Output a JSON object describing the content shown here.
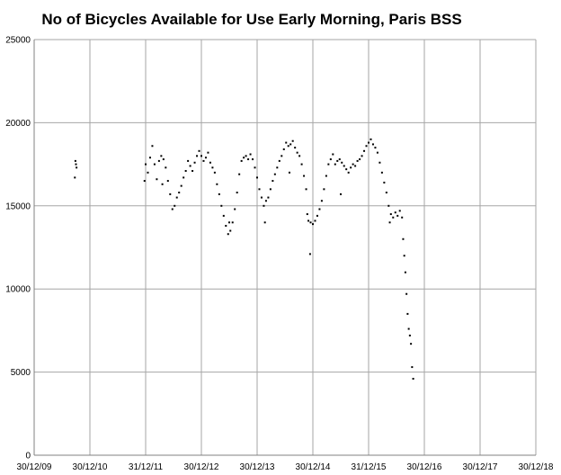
{
  "chart_data": {
    "type": "scatter",
    "title": "No of Bicycles Available for Use Early Morning, Paris BSS",
    "xlabel": "",
    "ylabel": "",
    "x_tick_labels": [
      "30/12/09",
      "30/12/10",
      "31/12/11",
      "30/12/12",
      "30/12/13",
      "30/12/14",
      "31/12/15",
      "30/12/16",
      "30/12/17",
      "30/12/18"
    ],
    "y_tick_labels": [
      "0",
      "5000",
      "10000",
      "15000",
      "20000",
      "25000"
    ],
    "ylim": [
      0,
      25000
    ],
    "xlim_years": [
      2010.0,
      2019.0
    ],
    "grid": true,
    "legend": "none",
    "colors": {
      "points": "#000000",
      "grid": "#a6a6a6",
      "axis": "#808080"
    },
    "series": [
      {
        "points": [
          [
            2010.73,
            16700
          ],
          [
            2010.74,
            17700
          ],
          [
            2010.75,
            17500
          ],
          [
            2010.76,
            17300
          ],
          [
            2012.0,
            17500
          ],
          [
            2012.04,
            17000
          ],
          [
            2012.08,
            17900
          ],
          [
            2012.12,
            18600
          ],
          [
            2012.16,
            17500
          ],
          [
            2012.2,
            16600
          ],
          [
            2012.24,
            17700
          ],
          [
            2012.28,
            18000
          ],
          [
            2012.32,
            17800
          ],
          [
            2012.36,
            17300
          ],
          [
            2012.4,
            16500
          ],
          [
            2012.44,
            15700
          ],
          [
            2012.48,
            14800
          ],
          [
            2012.52,
            15000
          ],
          [
            2012.56,
            15500
          ],
          [
            2012.6,
            15800
          ],
          [
            2012.64,
            16200
          ],
          [
            2012.68,
            16700
          ],
          [
            2012.72,
            17100
          ],
          [
            2012.76,
            17700
          ],
          [
            2012.8,
            17400
          ],
          [
            2012.84,
            17100
          ],
          [
            2012.88,
            17600
          ],
          [
            2012.92,
            18000
          ],
          [
            2012.96,
            18300
          ],
          [
            2013.0,
            18000
          ],
          [
            2013.04,
            17700
          ],
          [
            2013.08,
            17900
          ],
          [
            2013.12,
            18200
          ],
          [
            2013.16,
            17600
          ],
          [
            2013.2,
            17300
          ],
          [
            2013.24,
            17000
          ],
          [
            2013.28,
            16300
          ],
          [
            2013.32,
            15700
          ],
          [
            2013.36,
            15000
          ],
          [
            2013.4,
            14400
          ],
          [
            2013.44,
            13800
          ],
          [
            2013.48,
            13300
          ],
          [
            2013.52,
            13500
          ],
          [
            2013.56,
            14000
          ],
          [
            2013.6,
            14800
          ],
          [
            2013.64,
            15800
          ],
          [
            2013.68,
            16900
          ],
          [
            2013.72,
            17700
          ],
          [
            2013.76,
            17900
          ],
          [
            2013.8,
            18000
          ],
          [
            2013.84,
            17800
          ],
          [
            2013.88,
            18100
          ],
          [
            2013.92,
            17800
          ],
          [
            2013.96,
            17300
          ],
          [
            2014.0,
            16700
          ],
          [
            2014.04,
            16000
          ],
          [
            2014.08,
            15500
          ],
          [
            2014.12,
            15000
          ],
          [
            2014.16,
            15300
          ],
          [
            2014.2,
            15500
          ],
          [
            2014.24,
            16000
          ],
          [
            2014.28,
            16500
          ],
          [
            2014.32,
            16900
          ],
          [
            2014.36,
            17300
          ],
          [
            2014.4,
            17700
          ],
          [
            2014.44,
            18000
          ],
          [
            2014.48,
            18400
          ],
          [
            2014.52,
            18800
          ],
          [
            2014.56,
            18600
          ],
          [
            2014.6,
            18700
          ],
          [
            2014.64,
            18900
          ],
          [
            2014.68,
            18500
          ],
          [
            2014.72,
            18200
          ],
          [
            2014.76,
            18000
          ],
          [
            2014.8,
            17500
          ],
          [
            2014.84,
            16800
          ],
          [
            2014.88,
            16000
          ],
          [
            2014.9,
            14500
          ],
          [
            2014.92,
            14100
          ],
          [
            2014.96,
            14000
          ],
          [
            2015.0,
            13900
          ],
          [
            2015.04,
            14100
          ],
          [
            2015.08,
            14400
          ],
          [
            2015.12,
            14800
          ],
          [
            2015.16,
            15300
          ],
          [
            2015.2,
            16000
          ],
          [
            2015.24,
            16800
          ],
          [
            2015.28,
            17500
          ],
          [
            2015.32,
            17800
          ],
          [
            2015.36,
            18100
          ],
          [
            2015.4,
            17500
          ],
          [
            2015.44,
            17700
          ],
          [
            2015.48,
            17800
          ],
          [
            2015.52,
            17600
          ],
          [
            2015.56,
            17400
          ],
          [
            2015.6,
            17200
          ],
          [
            2015.64,
            17000
          ],
          [
            2015.68,
            17300
          ],
          [
            2015.72,
            17500
          ],
          [
            2015.76,
            17400
          ],
          [
            2015.8,
            17700
          ],
          [
            2015.84,
            17800
          ],
          [
            2015.88,
            18000
          ],
          [
            2015.92,
            18300
          ],
          [
            2015.96,
            18600
          ],
          [
            2016.0,
            18800
          ],
          [
            2016.04,
            19000
          ],
          [
            2016.08,
            18700
          ],
          [
            2016.12,
            18500
          ],
          [
            2016.16,
            18200
          ],
          [
            2016.2,
            17600
          ],
          [
            2016.24,
            17000
          ],
          [
            2016.28,
            16400
          ],
          [
            2016.32,
            15800
          ],
          [
            2016.36,
            15000
          ],
          [
            2016.4,
            14500
          ],
          [
            2016.44,
            14300
          ],
          [
            2016.48,
            14600
          ],
          [
            2016.52,
            14400
          ],
          [
            2016.56,
            14700
          ],
          [
            2016.6,
            14300
          ],
          [
            2016.62,
            13000
          ],
          [
            2016.64,
            12000
          ],
          [
            2016.66,
            11000
          ],
          [
            2016.68,
            9700
          ],
          [
            2016.7,
            8500
          ],
          [
            2016.72,
            7600
          ],
          [
            2016.74,
            7200
          ],
          [
            2016.76,
            6700
          ],
          [
            2016.78,
            5300
          ],
          [
            2016.8,
            4600
          ],
          [
            2011.98,
            16500
          ],
          [
            2012.3,
            16300
          ],
          [
            2013.5,
            14000
          ],
          [
            2014.14,
            14000
          ],
          [
            2014.58,
            17000
          ],
          [
            2014.95,
            12100
          ],
          [
            2015.5,
            15700
          ],
          [
            2016.38,
            14000
          ]
        ]
      }
    ]
  }
}
